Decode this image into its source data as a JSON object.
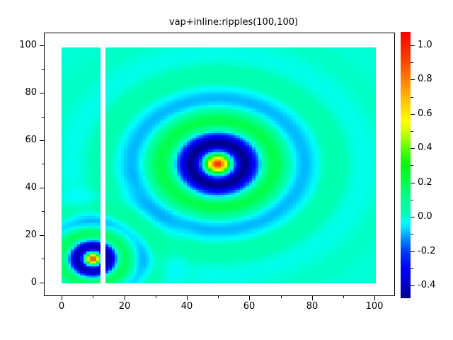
{
  "chart_data": {
    "type": "heatmap",
    "title": "vap+inline:ripples(100,100)",
    "xlabel": "",
    "ylabel": "",
    "x_axis": {
      "lim": [
        -5.7,
        106.5
      ],
      "major_ticks": [
        0,
        20,
        40,
        60,
        80,
        100
      ],
      "tick_labels": [
        "0",
        "20",
        "40",
        "60",
        "80",
        "100"
      ],
      "minor_ticks": [
        10,
        30,
        50,
        70,
        90
      ]
    },
    "y_axis": {
      "lim": [
        -5.7,
        105.4
      ],
      "major_ticks": [
        0,
        20,
        40,
        60,
        80,
        100
      ],
      "tick_labels": [
        "0",
        "20",
        "40",
        "60",
        "80",
        "100"
      ],
      "minor_ticks": [
        10,
        30,
        50,
        70,
        90
      ]
    },
    "image": {
      "grid": [
        100,
        100
      ],
      "extent_x": [
        0,
        100.57
      ],
      "extent_y": [
        -0.3,
        99.1
      ],
      "nan_gap_x": [
        12.4,
        14.0
      ],
      "nan_color": "#ffffff"
    },
    "ripples": [
      {
        "center": [
          50,
          50
        ],
        "amplitude": 1.0,
        "wavenumber": 0.331,
        "decay_length": 11.9
      },
      {
        "center": [
          10,
          10
        ],
        "amplitude": 1.0,
        "wavenumber": 0.571,
        "decay_length": 6.3
      }
    ],
    "colorbar": {
      "vmin": -0.474,
      "vmax": 1.078,
      "major_ticks": [
        1.0,
        0.8,
        0.6,
        0.4,
        0.2,
        0.0,
        -0.2,
        -0.4
      ],
      "tick_labels": [
        "1.0",
        "0.8",
        "0.6",
        "0.4",
        "0.2",
        "0.0",
        "-0.2",
        "-0.4"
      ],
      "minor_ticks": [
        0.9,
        0.7,
        0.5,
        0.3,
        0.1,
        -0.1,
        -0.3
      ]
    },
    "colormap": [
      [
        -0.474,
        "#000082"
      ],
      [
        -0.4,
        "#0000c8"
      ],
      [
        -0.3,
        "#0000ff"
      ],
      [
        -0.2,
        "#003cff"
      ],
      [
        -0.12,
        "#0096ff"
      ],
      [
        -0.06,
        "#00e6ff"
      ],
      [
        -0.03,
        "#00fffa"
      ],
      [
        0.02,
        "#00ffb4"
      ],
      [
        0.1,
        "#00ff96"
      ],
      [
        0.2,
        "#00ff50"
      ],
      [
        0.3,
        "#00f814"
      ],
      [
        0.4,
        "#5fff00"
      ],
      [
        0.5,
        "#d2ff00"
      ],
      [
        0.56,
        "#ffff00"
      ],
      [
        0.68,
        "#ffc300"
      ],
      [
        0.8,
        "#ff8200"
      ],
      [
        0.92,
        "#ff3c00"
      ],
      [
        1.078,
        "#ff0000"
      ]
    ],
    "background_color": "#ffffff",
    "frame_color": "#000000",
    "text_color": "#000000"
  }
}
